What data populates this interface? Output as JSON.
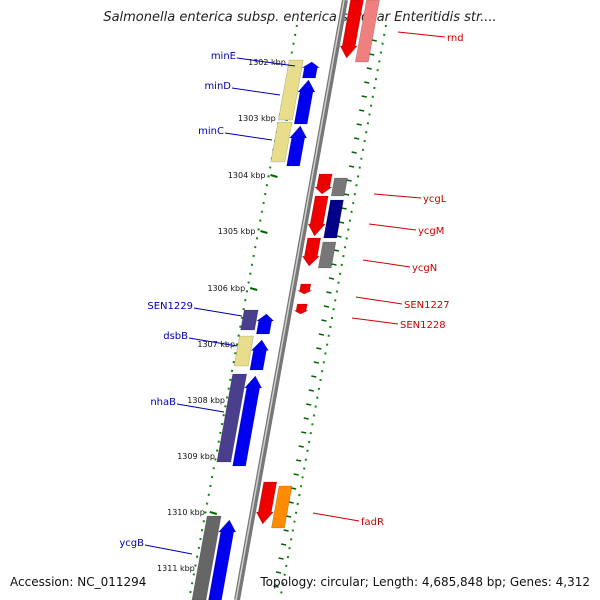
{
  "title": "Salmonella enterica subsp. enterica serovar Enteritidis str....",
  "accession_text": "Accession: NC_011294",
  "topology_text": "Topology: circular; Length: 4,685,848 bp; Genes: 4,312",
  "colors": {
    "forward_dark": "#0000ee",
    "forward_khaki": "#e8dd8a",
    "forward_slate": "#4a3f8c",
    "forward_gray": "#666666",
    "reverse_red": "#ee0000",
    "reverse_gray": "#777777",
    "reverse_navy": "#000088",
    "reverse_orange": "#ff8c00",
    "backbone": "#888888",
    "tick": "#006600",
    "left_label": "#0000aa",
    "right_label": "#cc0000"
  },
  "ticks": [
    {
      "label": "1302 kbp"
    },
    {
      "label": "1303 kbp"
    },
    {
      "label": "1304 kbp"
    },
    {
      "label": "1305 kbp"
    },
    {
      "label": "1306 kbp"
    },
    {
      "label": "1307 kbp"
    },
    {
      "label": "1308 kbp"
    },
    {
      "label": "1309 kbp"
    },
    {
      "label": "1310 kbp"
    },
    {
      "label": "1311 kbp"
    }
  ],
  "left_genes": [
    {
      "name": "minE"
    },
    {
      "name": "minD"
    },
    {
      "name": "minC"
    },
    {
      "name": "SEN1229"
    },
    {
      "name": "dsbB"
    },
    {
      "name": "nhaB"
    },
    {
      "name": "ycgB"
    }
  ],
  "right_genes": [
    {
      "name": "rnd"
    },
    {
      "name": "ycgL"
    },
    {
      "name": "ycgM"
    },
    {
      "name": "ycgN"
    },
    {
      "name": "SEN1227"
    },
    {
      "name": "SEN1228"
    },
    {
      "name": "fadR"
    }
  ]
}
